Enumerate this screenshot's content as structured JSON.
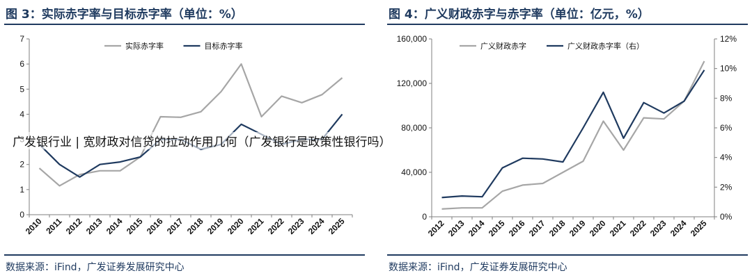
{
  "overlay_text": "广发银行业 | 宽财政对信贷的拉动作用几何（广发银行是政策性银行吗）",
  "chart_data": [
    {
      "type": "line",
      "title": "图 3：实际赤字率与目标赤字率（单位：%）",
      "source": "数据来源：iFind，广发证券发展研究中心",
      "categories": [
        "2010",
        "2011",
        "2012",
        "2013",
        "2014",
        "2015",
        "2016",
        "2017",
        "2018",
        "2019",
        "2020",
        "2021",
        "2022",
        "2023",
        "2024",
        "2025"
      ],
      "ylim": [
        0,
        7
      ],
      "yticks": [
        0,
        1,
        2,
        3,
        4,
        5,
        6,
        7
      ],
      "grid": false,
      "legend_position": "top",
      "series": [
        {
          "name": "实际赤字率",
          "color": "#a6a6a6",
          "values": [
            1.85,
            1.15,
            1.6,
            1.75,
            1.75,
            2.3,
            3.9,
            3.88,
            4.1,
            4.9,
            6.0,
            3.9,
            4.72,
            4.46,
            4.78,
            5.45
          ]
        },
        {
          "name": "目标赤字率",
          "color": "#1f3a5f",
          "values": [
            2.8,
            2.0,
            1.5,
            2.0,
            2.1,
            2.3,
            3.0,
            3.0,
            2.6,
            2.8,
            3.6,
            3.2,
            2.8,
            3.0,
            3.0,
            4.0
          ]
        }
      ]
    },
    {
      "type": "line",
      "title": "图 4：广义财政赤字与赤字率（单位：亿元，%）",
      "source": "数据来源：iFind，广发证券发展研究中心",
      "categories": [
        "2012",
        "2013",
        "2014",
        "2015",
        "2016",
        "2017",
        "2018",
        "2019",
        "2020",
        "2021",
        "2022",
        "2023",
        "2024",
        "2025"
      ],
      "ylim": [
        0,
        160000
      ],
      "yticks": [
        0,
        40000,
        80000,
        120000,
        160000
      ],
      "ytick_labels": [
        "0",
        "40,000",
        "80,000",
        "120,000",
        "160,000"
      ],
      "y2lim": [
        0,
        12
      ],
      "y2ticks": [
        0,
        2,
        4,
        6,
        8,
        10,
        12
      ],
      "y2tick_labels": [
        "0%",
        "2%",
        "4%",
        "6%",
        "8%",
        "10%",
        "12%"
      ],
      "grid": false,
      "legend_position": "top",
      "series": [
        {
          "name": "广义财政赤字",
          "axis": "left",
          "color": "#a6a6a6",
          "values": [
            7000,
            8000,
            8000,
            23000,
            28500,
            30000,
            40000,
            50000,
            86000,
            60000,
            89000,
            88000,
            104000,
            140000
          ]
        },
        {
          "name": "广义财政赤字率（右）",
          "axis": "right",
          "color": "#1f3a5f",
          "values": [
            1.3,
            1.4,
            1.35,
            3.3,
            3.95,
            3.9,
            3.7,
            6.0,
            8.4,
            5.3,
            7.7,
            7.0,
            7.8,
            9.9
          ]
        }
      ]
    }
  ]
}
